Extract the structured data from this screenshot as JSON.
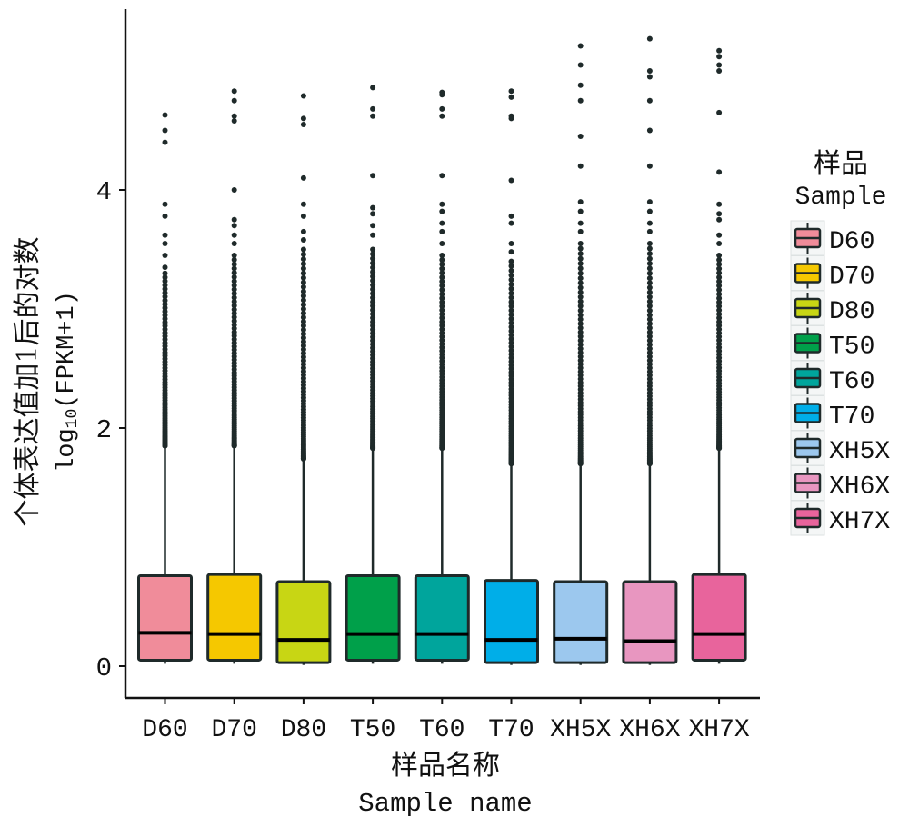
{
  "chart_data": {
    "type": "boxplot",
    "title": "",
    "xlabel": "样品名称",
    "xlabel_en": "Sample name",
    "ylabel": "个体表达值加1后的对数",
    "ylabel_en_prefix": "log",
    "ylabel_en_sub": "10",
    "ylabel_en_suffix": "(FPKM+1)",
    "ylim": [
      -0.25,
      5.5
    ],
    "yticks": [
      0,
      2,
      4
    ],
    "ytick_labels": [
      "0",
      "2",
      "4"
    ],
    "grid": false,
    "legend": {
      "placement": "right",
      "title": "样品",
      "title_en": "Sample"
    },
    "categories": [
      "D60",
      "D70",
      "D80",
      "T50",
      "T60",
      "T70",
      "XH5X",
      "XH6X",
      "XH7X"
    ],
    "series": [
      {
        "name": "D60",
        "color": "#F08C9A",
        "min": 0.02,
        "q1": 0.05,
        "median": 0.28,
        "q3": 0.76,
        "whisker_high": 1.85,
        "dense_outlier_range": [
          1.85,
          3.3
        ],
        "outliers": [
          3.35,
          3.45,
          3.55,
          3.62,
          3.78,
          3.88,
          4.4,
          4.5,
          4.63
        ]
      },
      {
        "name": "D70",
        "color": "#F5C800",
        "min": 0.02,
        "q1": 0.05,
        "median": 0.27,
        "q3": 0.77,
        "whisker_high": 1.85,
        "dense_outlier_range": [
          1.85,
          3.45
        ],
        "outliers": [
          3.55,
          3.62,
          3.7,
          3.75,
          4.0,
          4.58,
          4.62,
          4.75,
          4.83
        ]
      },
      {
        "name": "D80",
        "color": "#C8D614",
        "min": 0.01,
        "q1": 0.03,
        "median": 0.22,
        "q3": 0.71,
        "whisker_high": 1.74,
        "dense_outlier_range": [
          1.74,
          3.5
        ],
        "outliers": [
          3.58,
          3.65,
          3.78,
          3.88,
          4.1,
          4.55,
          4.6,
          4.79
        ]
      },
      {
        "name": "T50",
        "color": "#00A04A",
        "min": 0.02,
        "q1": 0.05,
        "median": 0.27,
        "q3": 0.76,
        "whisker_high": 1.83,
        "dense_outlier_range": [
          1.83,
          3.5
        ],
        "outliers": [
          3.62,
          3.7,
          3.8,
          3.85,
          4.12,
          4.62,
          4.68,
          4.86
        ]
      },
      {
        "name": "T60",
        "color": "#00A59C",
        "min": 0.02,
        "q1": 0.05,
        "median": 0.27,
        "q3": 0.76,
        "whisker_high": 1.83,
        "dense_outlier_range": [
          1.83,
          3.45
        ],
        "outliers": [
          3.55,
          3.65,
          3.72,
          3.82,
          3.88,
          4.12,
          4.62,
          4.68,
          4.8,
          4.82
        ]
      },
      {
        "name": "T70",
        "color": "#00AEE8",
        "min": 0.01,
        "q1": 0.03,
        "median": 0.22,
        "q3": 0.72,
        "whisker_high": 1.7,
        "dense_outlier_range": [
          1.7,
          3.4
        ],
        "outliers": [
          3.48,
          3.55,
          3.72,
          3.78,
          4.08,
          4.6,
          4.62,
          4.78,
          4.83
        ]
      },
      {
        "name": "XH5X",
        "color": "#9CC8EE",
        "min": 0.01,
        "q1": 0.03,
        "median": 0.23,
        "q3": 0.71,
        "whisker_high": 1.7,
        "dense_outlier_range": [
          1.7,
          3.55
        ],
        "outliers": [
          3.65,
          3.72,
          3.82,
          3.9,
          4.2,
          4.45,
          4.75,
          4.88,
          5.05,
          5.21
        ]
      },
      {
        "name": "XH6X",
        "color": "#E896C0",
        "min": 0.01,
        "q1": 0.03,
        "median": 0.21,
        "q3": 0.71,
        "whisker_high": 1.7,
        "dense_outlier_range": [
          1.7,
          3.55
        ],
        "outliers": [
          3.65,
          3.72,
          3.82,
          3.9,
          4.2,
          4.5,
          4.75,
          4.95,
          5.0,
          5.27
        ]
      },
      {
        "name": "XH7X",
        "color": "#E8649C",
        "min": 0.02,
        "q1": 0.05,
        "median": 0.27,
        "q3": 0.77,
        "whisker_high": 1.83,
        "dense_outlier_range": [
          1.83,
          3.45
        ],
        "outliers": [
          3.55,
          3.62,
          3.75,
          3.8,
          3.88,
          4.15,
          4.65,
          5.0,
          5.05,
          5.12,
          5.17
        ]
      }
    ]
  }
}
